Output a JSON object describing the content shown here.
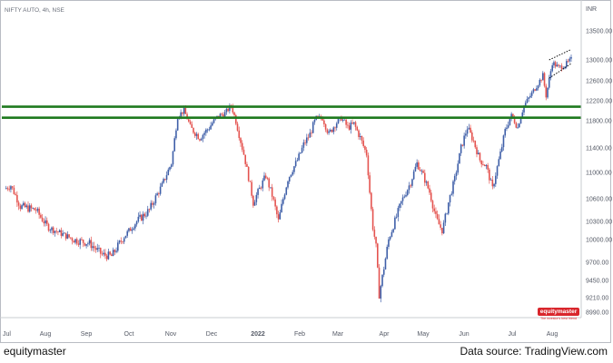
{
  "chart_data": {
    "type": "candlestick",
    "title": "NIFTY AUTO, 4h, NSE",
    "currency": "INR",
    "ylim": [
      8800,
      13820
    ],
    "y_ticks": [
      "13500.00",
      "13000.00",
      "12600.00",
      "12200.00",
      "11800.00",
      "11400.00",
      "11000.00",
      "10600.00",
      "10300.00",
      "10000.00",
      "9700.00",
      "9450.00",
      "9210.00",
      "8990.00"
    ],
    "x_ticks": [
      "Jul",
      "Aug",
      "Sep",
      "Oct",
      "Nov",
      "Dec",
      "2022",
      "Feb",
      "Mar",
      "Apr",
      "May",
      "Jun",
      "Jul",
      "Aug"
    ],
    "path": [
      [
        0,
        10750
      ],
      [
        2,
        10800
      ],
      [
        5,
        10500
      ],
      [
        10,
        10450
      ],
      [
        14,
        10200
      ],
      [
        18,
        10100
      ],
      [
        22,
        10000
      ],
      [
        27,
        9950
      ],
      [
        31,
        9800
      ],
      [
        34,
        9780
      ],
      [
        38,
        10050
      ],
      [
        42,
        10300
      ],
      [
        46,
        10450
      ],
      [
        50,
        10800
      ],
      [
        53,
        11150
      ],
      [
        55,
        11900
      ],
      [
        57,
        12000
      ],
      [
        59,
        11700
      ],
      [
        62,
        11550
      ],
      [
        65,
        11700
      ],
      [
        68,
        11900
      ],
      [
        70,
        11950
      ],
      [
        72,
        12100
      ],
      [
        74,
        11700
      ],
      [
        76,
        11300
      ],
      [
        78,
        10800
      ],
      [
        79,
        10550
      ],
      [
        81,
        10750
      ],
      [
        83,
        10950
      ],
      [
        85,
        10650
      ],
      [
        87,
        10300
      ],
      [
        88,
        10500
      ],
      [
        90,
        10900
      ],
      [
        93,
        11200
      ],
      [
        95,
        11450
      ],
      [
        97,
        11600
      ],
      [
        99,
        11850
      ],
      [
        101,
        11850
      ],
      [
        103,
        11600
      ],
      [
        105,
        11750
      ],
      [
        107,
        11850
      ],
      [
        109,
        11700
      ],
      [
        111,
        11750
      ],
      [
        113,
        11550
      ],
      [
        115,
        11300
      ],
      [
        116,
        10700
      ],
      [
        117,
        10200
      ],
      [
        118,
        9900
      ],
      [
        119,
        9250
      ],
      [
        120,
        9500
      ],
      [
        122,
        10000
      ],
      [
        124,
        10300
      ],
      [
        126,
        10550
      ],
      [
        129,
        10850
      ],
      [
        131,
        11150
      ],
      [
        133,
        10950
      ],
      [
        135,
        10700
      ],
      [
        137,
        10350
      ],
      [
        139,
        10150
      ],
      [
        141,
        10550
      ],
      [
        143,
        10900
      ],
      [
        145,
        11400
      ],
      [
        147,
        11700
      ],
      [
        149,
        11500
      ],
      [
        151,
        11200
      ],
      [
        153,
        11100
      ],
      [
        155,
        10750
      ],
      [
        157,
        11200
      ],
      [
        159,
        11650
      ],
      [
        161,
        11900
      ],
      [
        163,
        11700
      ],
      [
        165,
        12100
      ],
      [
        167,
        12300
      ],
      [
        169,
        12500
      ],
      [
        171,
        12700
      ],
      [
        172,
        12300
      ],
      [
        174,
        12950
      ],
      [
        176,
        12850
      ],
      [
        178,
        12900
      ],
      [
        180,
        13000
      ]
    ],
    "support_resistance": [
      {
        "value": 12080,
        "color": "#1f7a1f"
      },
      {
        "value": 11860,
        "color": "#1f7a1f"
      }
    ],
    "pattern_lines": [
      {
        "from": [
          173,
          13000
        ],
        "to": [
          180,
          13180
        ]
      },
      {
        "from": [
          173,
          12650
        ],
        "to": [
          180,
          12930
        ]
      }
    ]
  },
  "logo": {
    "name": "equitymaster",
    "tagline": "The investor's best friend"
  },
  "footer": {
    "left": "equitymaster",
    "right": "Data source: TradingView.com"
  }
}
